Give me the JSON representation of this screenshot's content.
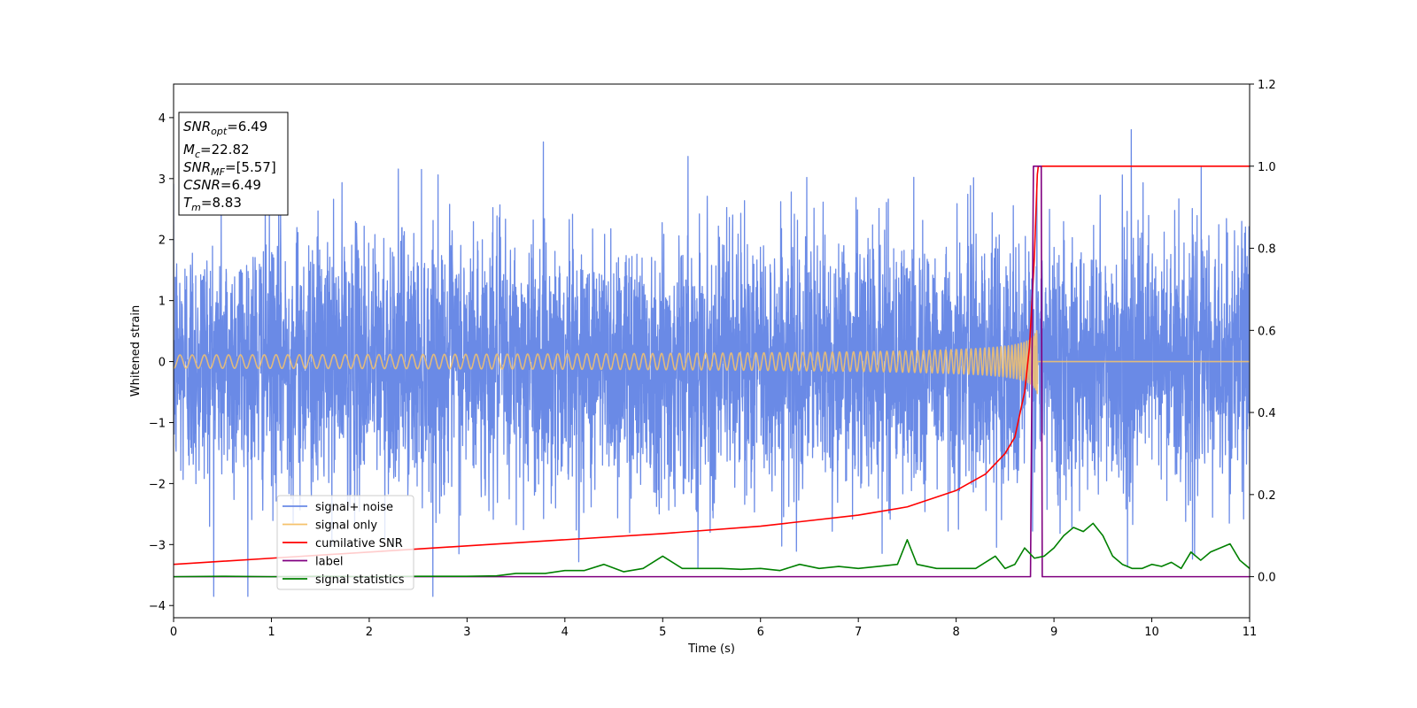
{
  "chart_data": {
    "type": "line",
    "title": "",
    "xlabel": "Time (s)",
    "ylabel": "Whitened strain",
    "xlim": [
      0,
      11
    ],
    "ylim": [
      -4.2,
      4.55
    ],
    "y2lim": [
      -0.1,
      1.2
    ],
    "x_ticks": [
      0,
      1,
      2,
      3,
      4,
      5,
      6,
      7,
      8,
      9,
      10,
      11
    ],
    "x_tick_labels": [
      "0",
      "1",
      "2",
      "3",
      "4",
      "5",
      "6",
      "7",
      "8",
      "9",
      "10",
      "11"
    ],
    "y_ticks": [
      -4,
      -3,
      -2,
      -1,
      0,
      1,
      2,
      3,
      4
    ],
    "y_tick_labels": [
      "−4",
      "−3",
      "−2",
      "−1",
      "0",
      "1",
      "2",
      "3",
      "4"
    ],
    "y2_ticks": [
      0.0,
      0.2,
      0.4,
      0.6,
      0.8,
      1.0,
      1.2
    ],
    "y2_tick_labels": [
      "0.0",
      "0.2",
      "0.4",
      "0.6",
      "0.8",
      "1.0",
      "1.2"
    ],
    "grid": false,
    "legend_position": "lower-left",
    "series": [
      {
        "name": "signal+ noise",
        "color": "#6a8ae6",
        "axis": "left",
        "kind": "noise",
        "std": 1.0,
        "max_abs_y": 3.85
      },
      {
        "name": "signal only",
        "color": "#f5c26b",
        "axis": "left",
        "kind": "chirp",
        "merger_time": 8.83,
        "peak_amplitude": 0.55
      },
      {
        "name": "cumilative SNR",
        "color": "#ff0000",
        "axis": "right",
        "x": [
          0,
          1,
          2,
          3,
          4,
          5,
          6,
          7,
          7.5,
          8,
          8.3,
          8.5,
          8.6,
          8.7,
          8.75,
          8.8,
          8.83,
          8.84,
          11
        ],
        "y": [
          0.03,
          0.045,
          0.06,
          0.075,
          0.09,
          0.105,
          0.123,
          0.15,
          0.17,
          0.21,
          0.25,
          0.3,
          0.34,
          0.45,
          0.56,
          0.78,
          0.98,
          1.0,
          1.0
        ]
      },
      {
        "name": "label",
        "color": "#800080",
        "axis": "right",
        "x": [
          0,
          8.76,
          8.79,
          8.87,
          8.88,
          11
        ],
        "y": [
          0,
          0,
          1.0,
          1.0,
          0,
          0
        ]
      },
      {
        "name": "signal statistics",
        "color": "#008000",
        "axis": "right",
        "x": [
          0,
          0.5,
          1,
          1.5,
          2,
          2.5,
          3,
          3.3,
          3.5,
          3.8,
          4.0,
          4.2,
          4.4,
          4.6,
          4.8,
          5.0,
          5.2,
          5.4,
          5.6,
          5.8,
          6.0,
          6.2,
          6.4,
          6.6,
          6.8,
          7.0,
          7.2,
          7.4,
          7.5,
          7.6,
          7.8,
          8.0,
          8.2,
          8.4,
          8.5,
          8.6,
          8.7,
          8.8,
          8.9,
          9.0,
          9.1,
          9.2,
          9.3,
          9.4,
          9.5,
          9.6,
          9.7,
          9.8,
          9.9,
          10.0,
          10.1,
          10.2,
          10.3,
          10.4,
          10.5,
          10.6,
          10.7,
          10.8,
          10.9,
          11.0
        ],
        "y": [
          0.0,
          0.001,
          0.0,
          0.001,
          0.0,
          0.001,
          0.001,
          0.002,
          0.008,
          0.008,
          0.015,
          0.015,
          0.03,
          0.012,
          0.02,
          0.05,
          0.02,
          0.02,
          0.02,
          0.018,
          0.02,
          0.015,
          0.03,
          0.02,
          0.025,
          0.02,
          0.025,
          0.03,
          0.09,
          0.03,
          0.02,
          0.02,
          0.02,
          0.05,
          0.02,
          0.03,
          0.07,
          0.045,
          0.05,
          0.07,
          0.1,
          0.12,
          0.11,
          0.13,
          0.1,
          0.05,
          0.03,
          0.02,
          0.02,
          0.03,
          0.025,
          0.035,
          0.02,
          0.06,
          0.04,
          0.06,
          0.07,
          0.08,
          0.04,
          0.02
        ]
      }
    ],
    "annotation": {
      "lines": [
        {
          "main": "SNR",
          "sub": "opt",
          "italic_main": true,
          "rest": "=6.49"
        },
        {
          "main": "M",
          "sub": "c",
          "italic_main": true,
          "rest": "=22.82"
        },
        {
          "main": "SNR",
          "sub": "MF",
          "italic_main": true,
          "rest": "=[5.57]"
        },
        {
          "main": "CSNR",
          "sub": "",
          "italic_main": true,
          "rest": "=6.49"
        },
        {
          "main": "T",
          "sub": "m",
          "italic_main": true,
          "rest": "=8.83"
        }
      ]
    }
  }
}
